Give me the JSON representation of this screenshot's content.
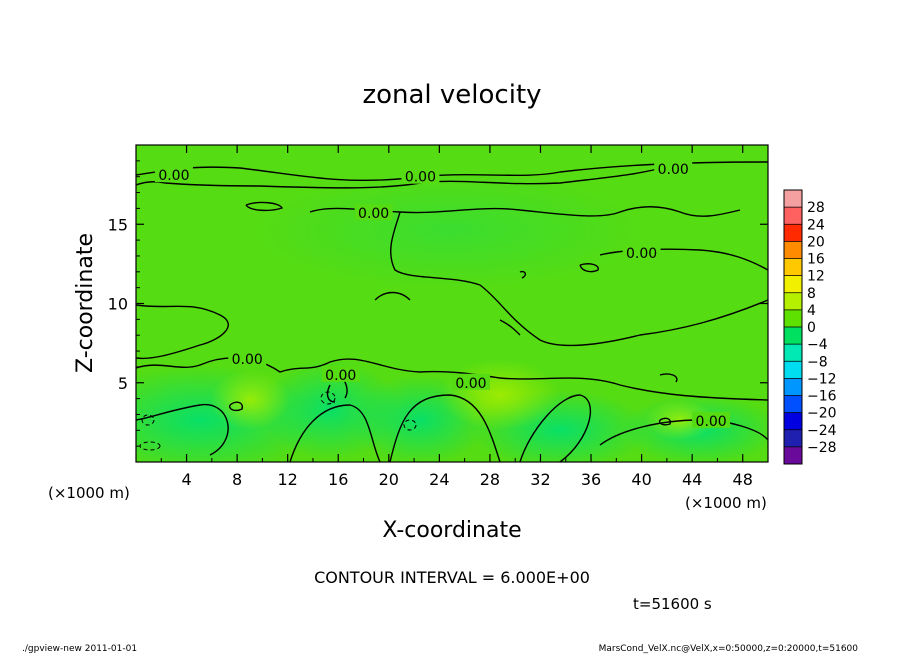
{
  "chart_data": {
    "type": "heatmap",
    "title": "zonal velocity",
    "xlabel": "X-coordinate",
    "ylabel": "Z-coordinate",
    "x_unit_note": "(×1000 m)",
    "y_unit_note": "(×1000 m)",
    "xlim": [
      0,
      50
    ],
    "ylim": [
      0,
      20
    ],
    "x_ticks": [
      4,
      8,
      12,
      16,
      20,
      24,
      28,
      32,
      36,
      40,
      44,
      48
    ],
    "y_ticks": [
      5,
      10,
      15
    ],
    "contour_labels": [
      {
        "text": "0.00",
        "x": 3.0,
        "y": 18.1
      },
      {
        "text": "0.00",
        "x": 22.5,
        "y": 18.0
      },
      {
        "text": "0.00",
        "x": 42.5,
        "y": 18.5
      },
      {
        "text": "0.00",
        "x": 18.8,
        "y": 15.7
      },
      {
        "text": "0.00",
        "x": 40.0,
        "y": 13.2
      },
      {
        "text": "0.00",
        "x": 8.8,
        "y": 6.5
      },
      {
        "text": "0.00",
        "x": 16.2,
        "y": 5.5
      },
      {
        "text": "0.00",
        "x": 26.5,
        "y": 5.0
      },
      {
        "text": "0.00",
        "x": 45.5,
        "y": 2.6
      }
    ],
    "colorbar": {
      "levels": [
        "28",
        "24",
        "20",
        "16",
        "12",
        "8",
        "4",
        "0",
        "−4",
        "−8",
        "−12",
        "−16",
        "−20",
        "−24",
        "−28"
      ],
      "colors": [
        "#f4a0a0",
        "#ff6060",
        "#ff2a00",
        "#ff8c00",
        "#ffc800",
        "#f0f000",
        "#b4f000",
        "#5ee000",
        "#00e060",
        "#00e8b4",
        "#00dcf0",
        "#0096ff",
        "#0050ff",
        "#0000e0",
        "#2020b0",
        "#6a0a9a"
      ]
    },
    "contour_interval": "CONTOUR INTERVAL = 6.000E+00",
    "time_label": "t=51600 s"
  },
  "footer": {
    "left": "./gpview-new  2011-01-01",
    "right": "MarsCond_VelX.nc@VelX,x=0:50000,z=0:20000,t=51600"
  }
}
